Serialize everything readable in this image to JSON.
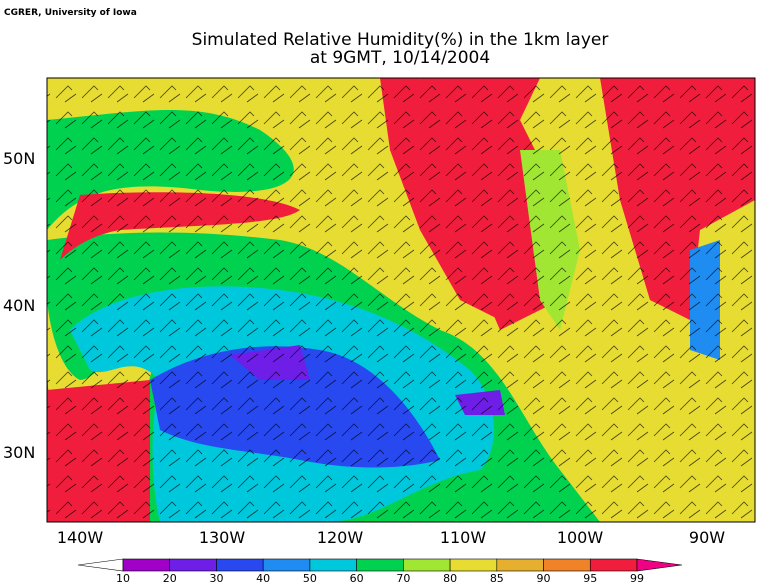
{
  "credit": "CGRER, University of Iowa",
  "title": [
    "Simulated Relative Humidity(%) in the 1km layer",
    "at 9GMT, 10/14/2004"
  ],
  "lon_labels": [
    "140W",
    "130W",
    "120W",
    "110W",
    "100W",
    "90W"
  ],
  "lat_labels": [
    "50N",
    "40N",
    "30N"
  ],
  "colorbar": {
    "levels": [
      "10",
      "20",
      "30",
      "40",
      "50",
      "60",
      "70",
      "80",
      "85",
      "90",
      "95",
      "99"
    ],
    "colors": [
      "#a000c8",
      "#6e1ee6",
      "#2848f0",
      "#1e8cf0",
      "#00c8dc",
      "#00d250",
      "#a0e632",
      "#e6dc32",
      "#e6af2d",
      "#f08228",
      "#f01e3c"
    ],
    "under_color": "#ffffff",
    "over_color": "#f00082"
  }
}
